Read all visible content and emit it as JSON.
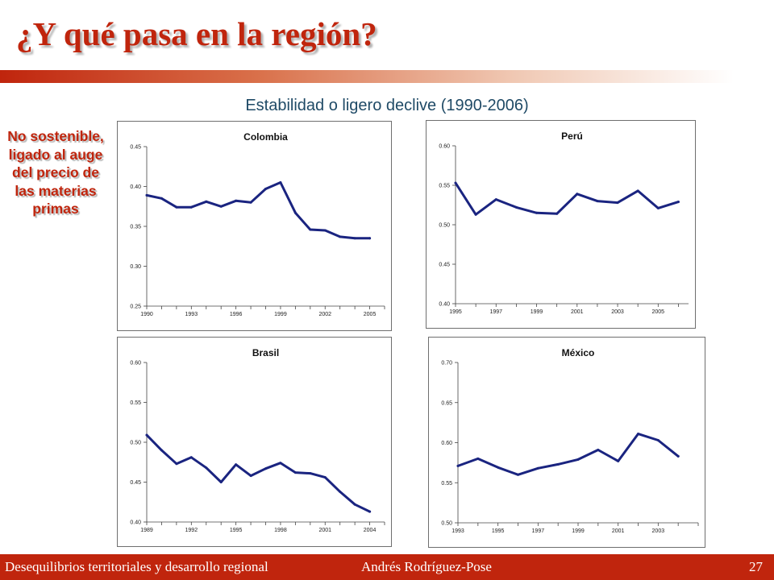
{
  "slide": {
    "title": "¿Y qué pasa en la región?",
    "subtitle": "Estabilidad o ligero declive (1990-2006)",
    "side_note": "No sostenible, ligado al auge del precio de las materias primas",
    "footer": {
      "left": "Desequilibrios territoriales y desarrollo regional",
      "center": "Andrés  Rodríguez-Pose",
      "page": "27"
    },
    "colors": {
      "accent": "#c0250d",
      "line": "#1a2480",
      "subtitle": "#1f4a66"
    }
  },
  "chart_data": [
    {
      "type": "line",
      "title": "Colombia",
      "x": [
        1990,
        1991,
        1992,
        1993,
        1994,
        1995,
        1996,
        1997,
        1998,
        1999,
        2000,
        2001,
        2002,
        2003,
        2004,
        2005
      ],
      "y": [
        0.389,
        0.385,
        0.374,
        0.374,
        0.381,
        0.375,
        0.382,
        0.38,
        0.397,
        0.405,
        0.367,
        0.346,
        0.345,
        0.337,
        0.335,
        0.335
      ],
      "xlim": [
        1990,
        2006
      ],
      "ylim": [
        0.25,
        0.45
      ],
      "xticks": [
        1990,
        1993,
        1996,
        1999,
        2002,
        2005
      ],
      "yticks": [
        "0.25",
        "0.30",
        "0.35",
        "0.40",
        "0.45"
      ]
    },
    {
      "type": "line",
      "title": "Perú",
      "x": [
        1995,
        1996,
        1997,
        1998,
        1999,
        2000,
        2001,
        2002,
        2003,
        2004,
        2005,
        2006
      ],
      "y": [
        0.553,
        0.513,
        0.532,
        0.522,
        0.515,
        0.514,
        0.539,
        0.53,
        0.528,
        0.543,
        0.521,
        0.529
      ],
      "xlim": [
        1995,
        2006.5
      ],
      "ylim": [
        0.4,
        0.6
      ],
      "xticks": [
        1995,
        1997,
        1999,
        2001,
        2003,
        2005
      ],
      "yticks": [
        "0.40",
        "0.45",
        "0.50",
        "0.55",
        "0.60"
      ]
    },
    {
      "type": "line",
      "title": "Brasil",
      "x": [
        1989,
        1990,
        1991,
        1992,
        1993,
        1994,
        1995,
        1996,
        1997,
        1998,
        1999,
        2000,
        2001,
        2002,
        2003,
        2004
      ],
      "y": [
        0.509,
        0.49,
        0.473,
        0.481,
        0.468,
        0.45,
        0.472,
        0.458,
        0.467,
        0.474,
        0.462,
        0.461,
        0.456,
        0.438,
        0.422,
        0.413
      ],
      "xlim": [
        1989,
        2005
      ],
      "ylim": [
        0.4,
        0.6
      ],
      "xticks": [
        1989,
        1992,
        1995,
        1998,
        2001,
        2004
      ],
      "yticks": [
        "0.40",
        "0.45",
        "0.50",
        "0.55",
        "0.60"
      ]
    },
    {
      "type": "line",
      "title": "México",
      "x": [
        1993,
        1994,
        1995,
        1996,
        1997,
        1998,
        1999,
        2000,
        2001,
        2002,
        2003,
        2004
      ],
      "y": [
        0.571,
        0.58,
        0.569,
        0.56,
        0.568,
        0.573,
        0.579,
        0.591,
        0.577,
        0.611,
        0.603,
        0.583
      ],
      "xlim": [
        1993,
        2005
      ],
      "ylim": [
        0.5,
        0.7
      ],
      "xticks": [
        1993,
        1995,
        1997,
        1999,
        2001,
        2003
      ],
      "yticks": [
        "0.50",
        "0.55",
        "0.60",
        "0.65",
        "0.70"
      ]
    }
  ]
}
